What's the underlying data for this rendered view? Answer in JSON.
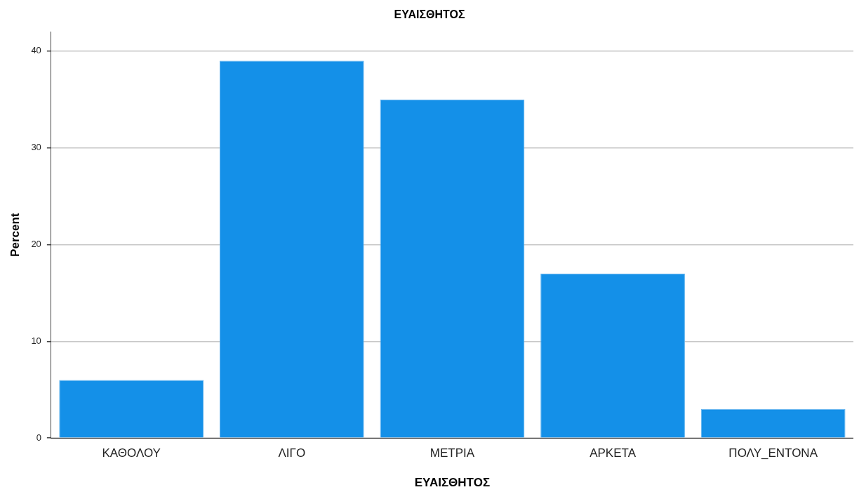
{
  "chart_data": {
    "type": "bar",
    "title": "ΕΥΑΙΣΘΗΤΟΣ",
    "xlabel": "ΕΥΑΙΣΘΗΤΟΣ",
    "ylabel": "Percent",
    "categories": [
      "ΚΑΘΟΛΟΥ",
      "ΛΙΓΟ",
      "ΜΕΤΡΙΑ",
      "ΑΡΚΕΤΑ",
      "ΠΟΛΥ_ΕΝΤΟΝΑ"
    ],
    "values": [
      6,
      39,
      35,
      17,
      3
    ],
    "color": "#1490e8",
    "ylim": [
      0,
      42
    ],
    "yticks": [
      0,
      10,
      20,
      30,
      40
    ],
    "grid": "y",
    "legend": false
  }
}
